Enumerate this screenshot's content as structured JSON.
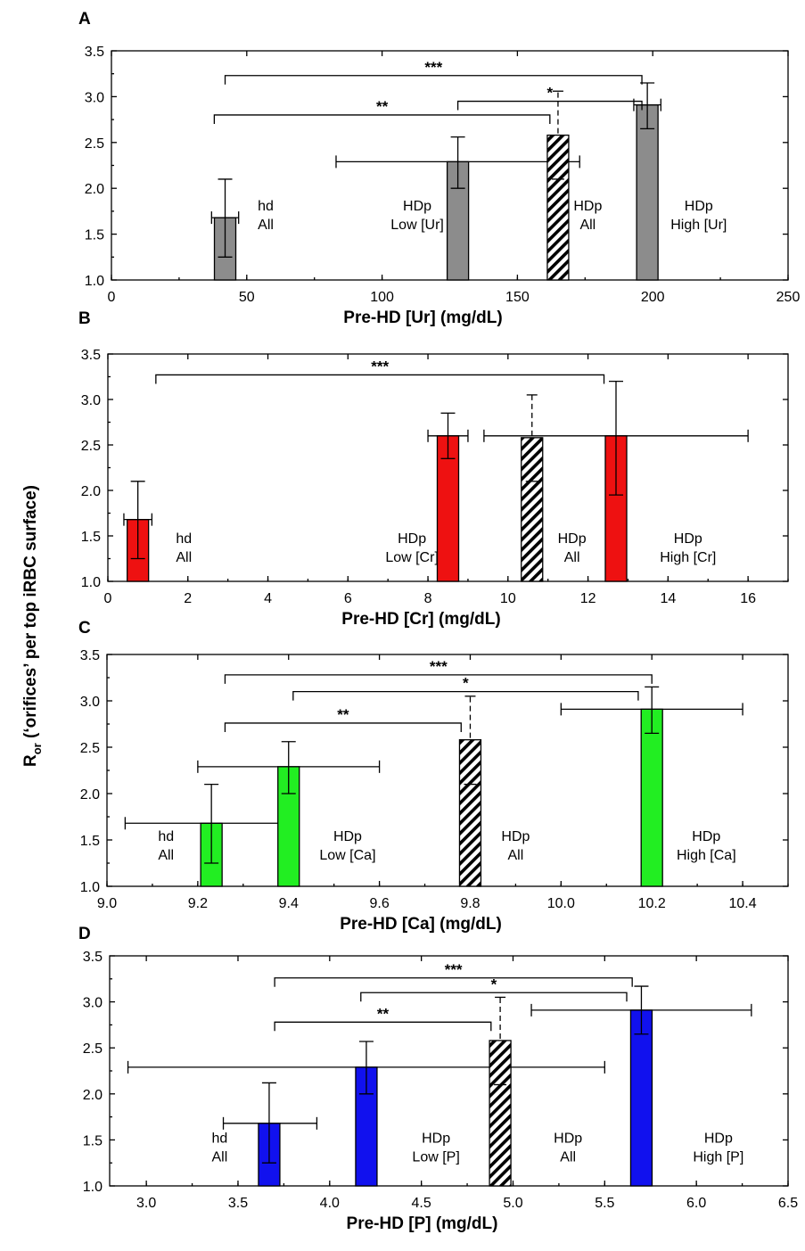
{
  "y_label": {
    "main": "R",
    "sub": "or",
    "rest": " (‘orifices’ per top iRBC surface)"
  },
  "colors": {
    "grey": "#8c8c8c",
    "red": "#ee1111",
    "green": "#22ee22",
    "blue": "#1111ee"
  },
  "chart_data": [
    {
      "type": "bar",
      "panel": "A",
      "xlabel": "Pre-HD [Ur] (mg/dL)",
      "xlim": [
        0,
        250
      ],
      "xticks": [
        0,
        50,
        100,
        150,
        200,
        250
      ],
      "ylim": [
        1.0,
        3.5
      ],
      "yticks": [
        1.0,
        1.5,
        2.0,
        2.5,
        3.0,
        3.5
      ],
      "tick_decimals_x": 0,
      "color": "#8c8c8c",
      "bars": [
        {
          "x": 42,
          "y": 1.68,
          "yerr": [
            1.25,
            2.1
          ],
          "xerr": [
            37,
            47
          ],
          "label": [
            "hd",
            "All"
          ],
          "hatched": false
        },
        {
          "x": 128,
          "y": 2.29,
          "yerr": [
            2.0,
            2.56
          ],
          "xerr": [
            83,
            173
          ],
          "label": [
            "HDp",
            "Low [Ur]"
          ],
          "hatched": false
        },
        {
          "x": 165,
          "y": 2.58,
          "yerr": [
            2.1,
            3.06
          ],
          "xerr": null,
          "label": [
            "HDp",
            "All"
          ],
          "hatched": true
        },
        {
          "x": 198,
          "y": 2.91,
          "yerr": [
            2.65,
            3.15
          ],
          "xerr": [
            193,
            203
          ],
          "label": [
            "HDp",
            "High [Ur]"
          ],
          "hatched": false
        }
      ],
      "labels_pos": [
        {
          "x": 57,
          "y": 1.72
        },
        {
          "x": 113,
          "y": 1.72
        },
        {
          "x": 176,
          "y": 1.72
        },
        {
          "x": 217,
          "y": 1.72
        }
      ],
      "brackets": [
        {
          "x1": 42,
          "x2": 196,
          "y": 3.23,
          "label": "***"
        },
        {
          "x1": 128,
          "x2": 196,
          "y": 2.95,
          "label": "*"
        },
        {
          "x1": 38,
          "x2": 162,
          "y": 2.8,
          "label": "**"
        }
      ]
    },
    {
      "type": "bar",
      "panel": "B",
      "xlabel": "Pre-HD [Cr] (mg/dL)",
      "xlim": [
        0,
        17
      ],
      "xticks": [
        0,
        2,
        4,
        6,
        8,
        10,
        12,
        14,
        16
      ],
      "ylim": [
        1.0,
        3.5
      ],
      "yticks": [
        1.0,
        1.5,
        2.0,
        2.5,
        3.0,
        3.5
      ],
      "tick_decimals_x": 0,
      "color": "#ee1111",
      "bars": [
        {
          "x": 0.75,
          "y": 1.68,
          "yerr": [
            1.25,
            2.1
          ],
          "xerr": [
            0.4,
            1.1
          ],
          "label": [
            "hd",
            "All"
          ],
          "hatched": false
        },
        {
          "x": 8.5,
          "y": 2.6,
          "yerr": [
            2.35,
            2.85
          ],
          "xerr": [
            8.0,
            9.0
          ],
          "label": [
            "HDp",
            "Low [Cr]"
          ],
          "hatched": false
        },
        {
          "x": 10.6,
          "y": 2.58,
          "yerr": [
            2.1,
            3.05
          ],
          "xerr": null,
          "label": [
            "HDp",
            "All"
          ],
          "hatched": true
        },
        {
          "x": 12.7,
          "y": 2.6,
          "yerr": [
            1.95,
            3.2
          ],
          "xerr": [
            9.4,
            16.0
          ],
          "label": [
            "HDp",
            "High [Cr]"
          ],
          "hatched": false
        }
      ],
      "labels_pos": [
        {
          "x": 1.9,
          "y": 1.38
        },
        {
          "x": 7.6,
          "y": 1.38
        },
        {
          "x": 11.6,
          "y": 1.38
        },
        {
          "x": 14.5,
          "y": 1.38
        }
      ],
      "brackets": [
        {
          "x1": 1.2,
          "x2": 12.4,
          "y": 3.27,
          "label": "***"
        }
      ]
    },
    {
      "type": "bar",
      "panel": "C",
      "xlabel": "Pre-HD [Ca] (mg/dL)",
      "xlim": [
        9.0,
        10.5
      ],
      "xticks": [
        9.0,
        9.2,
        9.4,
        9.6,
        9.8,
        10.0,
        10.2,
        10.4
      ],
      "ylim": [
        1.0,
        3.5
      ],
      "yticks": [
        1.0,
        1.5,
        2.0,
        2.5,
        3.0,
        3.5
      ],
      "tick_decimals_x": 1,
      "color": "#22ee22",
      "bars": [
        {
          "x": 9.23,
          "y": 1.68,
          "yerr": [
            1.25,
            2.1
          ],
          "xerr": [
            9.04,
            9.42
          ],
          "label": [
            "hd",
            "All"
          ],
          "hatched": false
        },
        {
          "x": 9.4,
          "y": 2.29,
          "yerr": [
            2.0,
            2.56
          ],
          "xerr": [
            9.2,
            9.6
          ],
          "label": [
            "HDp",
            "Low [Ca]"
          ],
          "hatched": false
        },
        {
          "x": 9.8,
          "y": 2.58,
          "yerr": [
            2.1,
            3.05
          ],
          "xerr": null,
          "label": [
            "HDp",
            "All"
          ],
          "hatched": true
        },
        {
          "x": 10.2,
          "y": 2.91,
          "yerr": [
            2.65,
            3.15
          ],
          "xerr": [
            10.0,
            10.4
          ],
          "label": [
            "HDp",
            "High [Ca]"
          ],
          "hatched": false
        }
      ],
      "labels_pos": [
        {
          "x": 9.13,
          "y": 1.45
        },
        {
          "x": 9.53,
          "y": 1.45
        },
        {
          "x": 9.9,
          "y": 1.45
        },
        {
          "x": 10.32,
          "y": 1.45
        }
      ],
      "brackets": [
        {
          "x1": 9.26,
          "x2": 10.2,
          "y": 3.28,
          "label": "***"
        },
        {
          "x1": 9.41,
          "x2": 10.17,
          "y": 3.1,
          "label": "*"
        },
        {
          "x1": 9.26,
          "x2": 9.78,
          "y": 2.76,
          "label": "**"
        }
      ]
    },
    {
      "type": "bar",
      "panel": "D",
      "xlabel": "Pre-HD [P] (mg/dL)",
      "xlim": [
        2.8,
        6.5
      ],
      "xticks": [
        3.0,
        3.5,
        4.0,
        4.5,
        5.0,
        5.5,
        6.0,
        6.5
      ],
      "ylim": [
        1.0,
        3.5
      ],
      "yticks": [
        1.0,
        1.5,
        2.0,
        2.5,
        3.0,
        3.5
      ],
      "tick_decimals_x": 1,
      "color": "#1111ee",
      "bars": [
        {
          "x": 3.67,
          "y": 1.68,
          "yerr": [
            1.25,
            2.12
          ],
          "xerr": [
            3.42,
            3.93
          ],
          "label": [
            "hd",
            "All"
          ],
          "hatched": false
        },
        {
          "x": 4.2,
          "y": 2.29,
          "yerr": [
            2.0,
            2.57
          ],
          "xerr": [
            2.9,
            5.5
          ],
          "label": [
            "HDp",
            "Low [P]"
          ],
          "hatched": false
        },
        {
          "x": 4.93,
          "y": 2.58,
          "yerr": [
            2.1,
            3.05
          ],
          "xerr": null,
          "label": [
            "HDp",
            "All"
          ],
          "hatched": true
        },
        {
          "x": 5.7,
          "y": 2.91,
          "yerr": [
            2.65,
            3.17
          ],
          "xerr": [
            5.1,
            6.3
          ],
          "label": [
            "HDp",
            "High [P]"
          ],
          "hatched": false
        }
      ],
      "labels_pos": [
        {
          "x": 3.4,
          "y": 1.43
        },
        {
          "x": 4.58,
          "y": 1.43
        },
        {
          "x": 5.3,
          "y": 1.43
        },
        {
          "x": 6.12,
          "y": 1.43
        }
      ],
      "brackets": [
        {
          "x1": 3.7,
          "x2": 5.65,
          "y": 3.26,
          "label": "***"
        },
        {
          "x1": 4.17,
          "x2": 5.62,
          "y": 3.1,
          "label": "*"
        },
        {
          "x1": 3.7,
          "x2": 4.88,
          "y": 2.78,
          "label": "**"
        }
      ]
    }
  ]
}
